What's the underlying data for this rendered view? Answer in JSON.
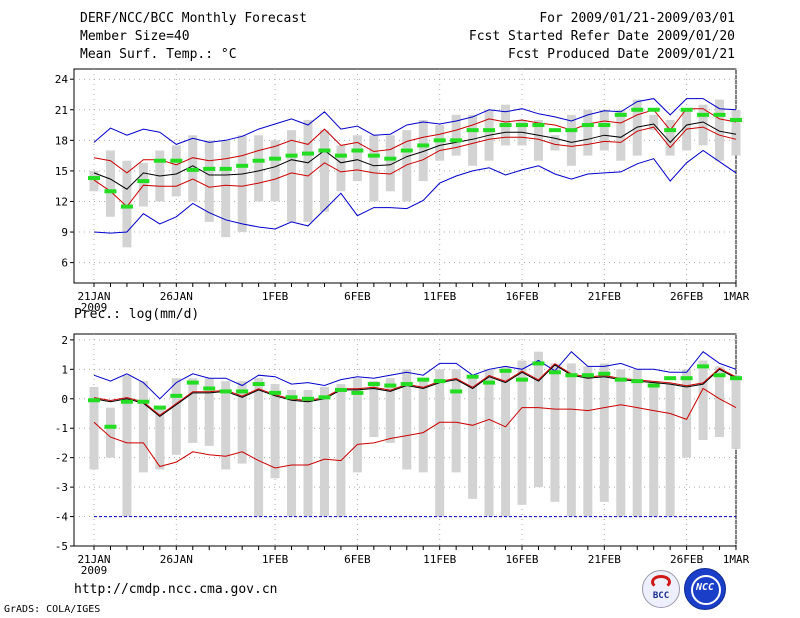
{
  "header": {
    "title": "DERF/NCC/BCC Monthly Forecast",
    "member_size": "Member Size=40",
    "variable_top": "Mean Surf. Temp.: °C",
    "period": "For 2009/01/21-2009/03/01",
    "started": "Fcst Started Refer Date 2009/01/20",
    "produced": "Fcst Produced Date 2009/01/21"
  },
  "footer": {
    "url": "http://cmdp.ncc.cma.gov.cn",
    "grads": "GrADS: COLA/IGES",
    "logo_bcc": "BCC",
    "logo_ncc": "NCC"
  },
  "colors": {
    "max_min": "#0000cc",
    "spread": "#cc0000",
    "mean": "#000000",
    "bar": "#d3d3d3",
    "median": "#22dd22",
    "grid": "#aaaaaa"
  },
  "chart_data": [
    {
      "type": "line",
      "title": "Mean Surf. Temp.: °C",
      "x": [
        "21JAN",
        "22JAN",
        "23JAN",
        "24JAN",
        "25JAN",
        "26JAN",
        "27JAN",
        "28JAN",
        "29JAN",
        "30JAN",
        "31JAN",
        "1FEB",
        "2FEB",
        "3FEB",
        "4FEB",
        "5FEB",
        "6FEB",
        "7FEB",
        "8FEB",
        "9FEB",
        "10FEB",
        "11FEB",
        "12FEB",
        "13FEB",
        "14FEB",
        "15FEB",
        "16FEB",
        "17FEB",
        "18FEB",
        "19FEB",
        "20FEB",
        "21FEB",
        "22FEB",
        "23FEB",
        "24FEB",
        "25FEB",
        "26FEB",
        "27FEB",
        "28FEB",
        "1MAR"
      ],
      "xticks": [
        "21JAN",
        "26JAN",
        "1FEB",
        "6FEB",
        "11FEB",
        "16FEB",
        "21FEB",
        "26FEB",
        "1MAR"
      ],
      "xticks_sub": "2009",
      "ylim": [
        4,
        25
      ],
      "yticks": [
        "24",
        "21",
        "18",
        "15",
        "12",
        "9",
        "6"
      ],
      "series": [
        {
          "name": "max",
          "values": [
            17.8,
            19.2,
            18.5,
            19.1,
            18.8,
            17.6,
            18.2,
            17.8,
            18,
            18.4,
            19.1,
            19.6,
            20.1,
            19.5,
            20.8,
            19.1,
            19.4,
            18.5,
            18.6,
            19.5,
            19.8,
            19.6,
            19.9,
            20.3,
            21,
            20.8,
            21.1,
            20.6,
            20.3,
            19.9,
            20.5,
            20.9,
            20.8,
            21.8,
            22.1,
            20.5,
            22.1,
            22.1,
            21.1,
            21
          ]
        },
        {
          "name": "mean_plus_sd",
          "values": [
            16.3,
            16,
            14.8,
            16.1,
            16.1,
            15.6,
            16.3,
            16,
            16.2,
            16.5,
            17,
            17.4,
            18,
            17.6,
            19.1,
            17.5,
            17.8,
            16.9,
            17.1,
            17.9,
            18.3,
            18.6,
            19,
            19.5,
            20.1,
            19.8,
            20,
            19.7,
            19.5,
            19,
            19.6,
            19.9,
            19.7,
            20.5,
            21,
            19,
            21.1,
            21.1,
            20.1,
            19.8
          ]
        },
        {
          "name": "mean",
          "values": [
            14.8,
            14.2,
            13.2,
            14.8,
            14.5,
            14.7,
            15.5,
            14.6,
            14.6,
            14.7,
            15,
            15.4,
            16.1,
            15.8,
            17,
            15.8,
            16.1,
            15.5,
            15.6,
            16.4,
            16.9,
            17.5,
            17.8,
            18.1,
            18.5,
            18.8,
            18.8,
            18.5,
            18.2,
            17.8,
            18.1,
            18.5,
            18.3,
            19.3,
            19.6,
            17.8,
            19.5,
            19.8,
            18.9,
            18.6
          ]
        },
        {
          "name": "mean_minus_sd",
          "values": [
            14.1,
            13,
            11.5,
            13.6,
            13.5,
            13.5,
            14.2,
            13.4,
            13.6,
            13.5,
            13.8,
            14.2,
            14.8,
            14.5,
            15.8,
            14.9,
            15.1,
            14.8,
            14.7,
            15.6,
            16.1,
            17,
            17.3,
            17.7,
            18.1,
            18.3,
            18.3,
            18.1,
            17.6,
            17.4,
            17.6,
            17.9,
            17.8,
            18.9,
            19.3,
            17.3,
            19.1,
            19.3,
            18.5,
            18.1
          ]
        },
        {
          "name": "min",
          "values": [
            9,
            8.9,
            9,
            10.8,
            9.8,
            10.5,
            11.8,
            10.9,
            10.2,
            9.8,
            9.5,
            9.3,
            10,
            9.6,
            11.2,
            12.8,
            10.6,
            11.4,
            11.4,
            11.3,
            12.1,
            13.8,
            14.5,
            15,
            15.3,
            14.6,
            15.1,
            15.5,
            14.7,
            14.2,
            14.7,
            14.8,
            14.9,
            15.7,
            16.2,
            14,
            15.8,
            17,
            15.9,
            14.8
          ]
        },
        {
          "name": "box_low",
          "values": [
            13,
            10.5,
            7.5,
            11.5,
            12,
            12.5,
            12,
            10,
            8.5,
            9,
            12,
            12,
            10,
            10,
            11,
            13,
            14,
            12,
            13,
            12,
            14,
            16,
            16.5,
            15.5,
            16,
            17.5,
            17.5,
            16,
            17,
            15.5,
            16.5,
            17,
            16,
            16.5,
            19,
            16.5,
            17,
            17.5,
            16,
            16.5
          ]
        },
        {
          "name": "box_high",
          "values": [
            15,
            17,
            16,
            15.8,
            17,
            17.5,
            18.5,
            18,
            18,
            18.5,
            18.5,
            18,
            19,
            20,
            19,
            17.5,
            18.5,
            18.5,
            18.5,
            19,
            20,
            19.5,
            20.5,
            20.5,
            21,
            21.5,
            20,
            20,
            18.5,
            20.5,
            21,
            21,
            21,
            22,
            20.5,
            20,
            21,
            21.5,
            22,
            21
          ]
        },
        {
          "name": "median",
          "values": [
            14.3,
            13,
            11.5,
            14,
            16,
            16,
            15.1,
            15.2,
            15.2,
            15.5,
            16,
            16.2,
            16.5,
            16.7,
            17,
            16.5,
            17,
            16.5,
            16.2,
            17,
            17.5,
            18,
            18,
            19,
            19,
            19.5,
            19.5,
            19.5,
            19,
            19,
            19.5,
            19.5,
            20.5,
            21,
            21,
            19,
            21,
            20.5,
            20.5,
            20
          ]
        }
      ]
    },
    {
      "type": "line",
      "title": "Prec.: log(mm/d)",
      "x": [
        "21JAN",
        "22JAN",
        "23JAN",
        "24JAN",
        "25JAN",
        "26JAN",
        "27JAN",
        "28JAN",
        "29JAN",
        "30JAN",
        "31JAN",
        "1FEB",
        "2FEB",
        "3FEB",
        "4FEB",
        "5FEB",
        "6FEB",
        "7FEB",
        "8FEB",
        "9FEB",
        "10FEB",
        "11FEB",
        "12FEB",
        "13FEB",
        "14FEB",
        "15FEB",
        "16FEB",
        "17FEB",
        "18FEB",
        "19FEB",
        "20FEB",
        "21FEB",
        "22FEB",
        "23FEB",
        "24FEB",
        "25FEB",
        "26FEB",
        "27FEB",
        "28FEB",
        "1MAR"
      ],
      "xticks": [
        "21JAN",
        "26JAN",
        "1FEB",
        "6FEB",
        "11FEB",
        "16FEB",
        "21FEB",
        "26FEB",
        "1MAR"
      ],
      "xticks_sub": "2009",
      "ylim": [
        -5,
        2.2
      ],
      "yticks": [
        "2",
        "1",
        "0",
        "-1",
        "-2",
        "-3",
        "-4",
        "-5"
      ],
      "series": [
        {
          "name": "max",
          "values": [
            0.8,
            0.6,
            0.85,
            0.55,
            0,
            0.55,
            0.85,
            0.7,
            0.7,
            0.45,
            0.8,
            0.75,
            0.5,
            0.55,
            0.45,
            0.65,
            0.75,
            0.7,
            0.8,
            0.9,
            0.8,
            1.2,
            1.2,
            0.8,
            1,
            1.1,
            1,
            1.3,
            0.95,
            1.6,
            1.1,
            1.1,
            1.2,
            1,
            1,
            0.9,
            0.9,
            1.6,
            1.2,
            1
          ]
        },
        {
          "name": "mean",
          "values": [
            0,
            -0.1,
            0,
            -0.15,
            -0.6,
            -0.2,
            0.2,
            0.2,
            0.25,
            0.05,
            0.3,
            0.1,
            -0.05,
            -0.1,
            0,
            0.3,
            0.3,
            0.35,
            0.25,
            0.45,
            0.35,
            0.55,
            0.65,
            0.35,
            0.75,
            0.55,
            0.9,
            0.6,
            1.15,
            0.8,
            0.7,
            0.75,
            0.65,
            0.6,
            0.55,
            0.5,
            0.4,
            0.5,
            1,
            0.7
          ]
        },
        {
          "name": "spread_low",
          "values": [
            -0.8,
            -1.3,
            -1.5,
            -1.5,
            -2.3,
            -2.15,
            -1.8,
            -1.9,
            -1.95,
            -1.8,
            -2.1,
            -2.35,
            -2.25,
            -2.25,
            -2.05,
            -2.1,
            -1.55,
            -1.5,
            -1.35,
            -1.25,
            -1.15,
            -0.8,
            -0.8,
            -0.9,
            -0.7,
            -0.95,
            -0.3,
            -0.3,
            -0.35,
            -0.35,
            -0.4,
            -0.3,
            -0.2,
            -0.3,
            -0.4,
            -0.5,
            -0.7,
            0.35,
            0,
            -0.3
          ]
        },
        {
          "name": "min",
          "values": [
            -4,
            -4,
            -4,
            -4,
            -4,
            -4,
            -4,
            -4,
            -4,
            -4,
            -4,
            -4,
            -4,
            -4,
            -4,
            -4,
            -4,
            -4,
            -4,
            -4,
            -4,
            -4,
            -4,
            -4,
            -4,
            -4,
            -4,
            -4,
            -4,
            -4,
            -4,
            -4,
            -4,
            -4,
            -4,
            -4,
            -4,
            -4,
            -4,
            -4
          ]
        },
        {
          "name": "box_low",
          "values": [
            -2.4,
            -2,
            -4,
            -2.5,
            -2.4,
            -1.9,
            -1.5,
            -1.6,
            -2.4,
            -2.2,
            -4,
            -2.7,
            -4,
            -4,
            -4,
            -4,
            -2.5,
            -1.3,
            -1.5,
            -2.4,
            -2.5,
            -4,
            -2.5,
            -3.4,
            -4,
            -4,
            -3.6,
            -3,
            -3.5,
            -4,
            -4,
            -3.5,
            -4,
            -4,
            -4,
            -4,
            -2,
            -1.4,
            -1.3,
            -1.7
          ]
        },
        {
          "name": "box_high",
          "values": [
            0.4,
            -0.3,
            0.8,
            0.6,
            -0.3,
            0.7,
            0.7,
            0.7,
            0.6,
            0.6,
            0.7,
            0.5,
            0.3,
            0.3,
            0.4,
            0.5,
            0.7,
            0.6,
            0.7,
            1,
            0.7,
            1,
            1,
            0.7,
            1,
            1.1,
            1.3,
            1.6,
            1.2,
            1.2,
            1.1,
            1.2,
            1,
            1,
            0.6,
            0.5,
            1,
            1.3,
            1.1,
            0.8
          ]
        },
        {
          "name": "median",
          "values": [
            -0.05,
            -0.95,
            -0.1,
            -0.1,
            -0.3,
            0.1,
            0.55,
            0.35,
            0.25,
            0.25,
            0.5,
            0.2,
            0.05,
            0,
            0.05,
            0.3,
            0.2,
            0.5,
            0.45,
            0.5,
            0.65,
            0.6,
            0.25,
            0.75,
            0.55,
            0.95,
            0.65,
            1.2,
            0.9,
            0.8,
            0.8,
            0.85,
            0.65,
            0.6,
            0.45,
            0.7,
            0.7,
            1.1,
            0.8,
            0.7
          ]
        }
      ]
    }
  ]
}
